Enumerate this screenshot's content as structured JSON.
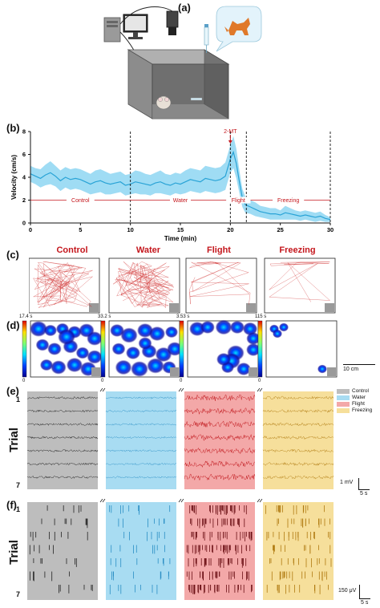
{
  "panels": {
    "a": "(a)",
    "b": "(b)",
    "c": "(c)",
    "d": "(d)",
    "e": "(e)",
    "f": "(f)"
  },
  "colors": {
    "control": "#bdbdbd",
    "water": "#a8dcf2",
    "flight": "#f3a8a8",
    "freezing": "#f6df9b",
    "velocity_line": "#29a3d6",
    "velocity_band": "#7fd0f0",
    "annotation_red": "#c4161c"
  },
  "setup_icons": [
    "computer-icon",
    "camera-icon",
    "arena-box",
    "mouse-icon",
    "fox-icon",
    "odor-tube"
  ],
  "chart_data": {
    "type": "line",
    "xlabel": "Time (min)",
    "ylabel": "Velocity (cm/s)",
    "xlim": [
      0,
      30
    ],
    "ylim": [
      0,
      8
    ],
    "xticks": [
      "0",
      "5",
      "10",
      "15",
      "20",
      "25",
      "30"
    ],
    "yticks": [
      "0",
      "2",
      "4",
      "6",
      "8"
    ],
    "annotation": "2-MT",
    "annotation_x": 20,
    "epoch_boundaries": [
      10,
      20,
      21.6,
      30
    ],
    "epochs": [
      {
        "label": "Control",
        "start": 0,
        "end": 10
      },
      {
        "label": "Water",
        "start": 10,
        "end": 20
      },
      {
        "label": "Flight",
        "start": 20,
        "end": 21.6
      },
      {
        "label": "Freezing",
        "start": 21.6,
        "end": 30
      }
    ],
    "series": [
      {
        "x": [
          0,
          0.5,
          1,
          1.5,
          2,
          2.5,
          3,
          3.5,
          4,
          4.5,
          5,
          5.5,
          6,
          6.5,
          7,
          7.5,
          8,
          8.5,
          9,
          9.5,
          10,
          10.5,
          11,
          11.5,
          12,
          12.5,
          13,
          13.5,
          14,
          14.5,
          15,
          15.5,
          16,
          16.5,
          17,
          17.5,
          18,
          18.5,
          19,
          19.5,
          20,
          20.3,
          20.6,
          20.9,
          21.2,
          21.5,
          22,
          22.5,
          23,
          23.5,
          24,
          24.5,
          25,
          25.5,
          26,
          26.5,
          27,
          27.5,
          28,
          28.5,
          29,
          29.5,
          30
        ],
        "mean": [
          4.3,
          4.1,
          3.9,
          4.2,
          4.4,
          4.1,
          3.7,
          4.0,
          3.8,
          3.9,
          3.8,
          3.6,
          3.4,
          3.6,
          3.7,
          3.5,
          3.4,
          3.5,
          3.6,
          3.3,
          3.4,
          3.6,
          3.5,
          3.4,
          3.3,
          3.5,
          3.6,
          3.4,
          3.3,
          3.5,
          3.4,
          3.6,
          3.8,
          3.7,
          3.6,
          3.9,
          3.8,
          3.7,
          3.8,
          4.1,
          5.6,
          6.2,
          5.2,
          3.6,
          2.2,
          1.6,
          1.4,
          1.2,
          1.0,
          0.9,
          0.8,
          0.8,
          0.7,
          0.9,
          0.8,
          0.7,
          0.6,
          0.7,
          0.6,
          0.5,
          0.6,
          0.4,
          0.3
        ],
        "upper": [
          5.0,
          4.8,
          4.7,
          5.1,
          5.4,
          5.0,
          4.6,
          4.9,
          4.7,
          4.8,
          4.7,
          4.5,
          4.3,
          4.6,
          4.7,
          4.5,
          4.3,
          4.4,
          4.5,
          4.2,
          4.3,
          4.6,
          4.5,
          4.3,
          4.2,
          4.4,
          4.6,
          4.3,
          4.2,
          4.4,
          4.3,
          4.6,
          4.8,
          4.7,
          4.6,
          5.0,
          4.9,
          4.8,
          4.9,
          5.3,
          6.8,
          7.6,
          6.5,
          4.6,
          3.0,
          2.3,
          2.0,
          1.8,
          1.5,
          1.4,
          1.3,
          1.3,
          1.1,
          1.5,
          1.3,
          1.1,
          1.0,
          1.1,
          1.0,
          0.9,
          1.0,
          0.7,
          0.5
        ],
        "lower": [
          3.6,
          3.4,
          3.1,
          3.3,
          3.4,
          3.2,
          2.8,
          3.1,
          2.9,
          3.0,
          2.9,
          2.7,
          2.5,
          2.6,
          2.7,
          2.5,
          2.5,
          2.6,
          2.7,
          2.4,
          2.5,
          2.6,
          2.5,
          2.5,
          2.4,
          2.6,
          2.6,
          2.5,
          2.4,
          2.6,
          2.5,
          2.6,
          2.8,
          2.7,
          2.6,
          2.8,
          2.7,
          2.6,
          2.7,
          2.9,
          4.4,
          4.8,
          3.9,
          2.6,
          1.4,
          0.9,
          0.8,
          0.6,
          0.5,
          0.4,
          0.3,
          0.3,
          0.3,
          0.3,
          0.3,
          0.3,
          0.2,
          0.3,
          0.2,
          0.1,
          0.2,
          0.1,
          0.1
        ]
      }
    ]
  },
  "conditions": [
    "Control",
    "Water",
    "Flight",
    "Freezing"
  ],
  "heatmaps": {
    "colorbar_max": [
      "17.4 s",
      "33.2 s",
      "3.53 s",
      "115 s"
    ],
    "colorbar_min": [
      "0",
      "0",
      "0",
      "0"
    ],
    "scale": "10 cm"
  },
  "lfp": {
    "axis_label": "Trial",
    "first_trial": "1",
    "last_trial": "7",
    "legend": [
      "Control",
      "Water",
      "Flight",
      "Freezing"
    ],
    "scale_voltage": "1 mV",
    "scale_time": "5 s"
  },
  "spikes": {
    "axis_label": "Trial",
    "first_trial": "1",
    "last_trial": "7",
    "scale_voltage": "150 μV",
    "scale_time": "5 s"
  }
}
